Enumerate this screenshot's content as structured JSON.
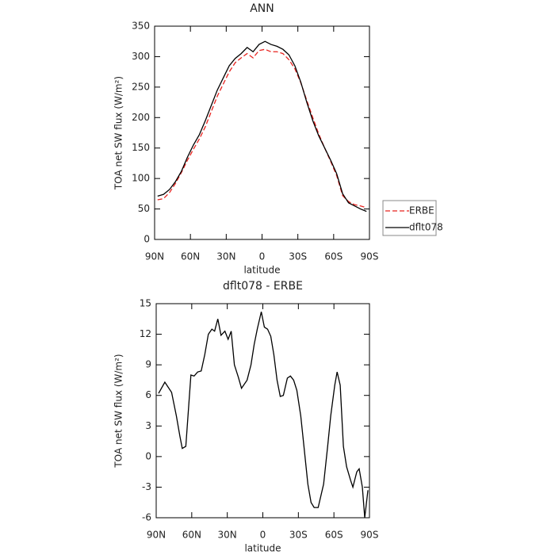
{
  "chart_data": [
    {
      "type": "line",
      "title": "ANN",
      "xlabel": "latitude",
      "ylabel": "TOA net SW flux (W/m²)",
      "x": [
        87.5,
        82.5,
        77.5,
        72.5,
        67.5,
        62.5,
        57.5,
        52.5,
        47.5,
        42.5,
        37.5,
        32.5,
        27.5,
        22.5,
        17.5,
        12.5,
        7.5,
        2.5,
        -2.5,
        -7.5,
        -12.5,
        -17.5,
        -22.5,
        -27.5,
        -32.5,
        -37.5,
        -42.5,
        -47.5,
        -52.5,
        -57.5,
        -62.5,
        -67.5,
        -72.5,
        -77.5,
        -82.5,
        -87.5
      ],
      "series": [
        {
          "name": "ERBE",
          "color": "#e8231f",
          "style": "dashed",
          "values": [
            65,
            67,
            77,
            92,
            110,
            130,
            148,
            165,
            185,
            210,
            235,
            255,
            275,
            290,
            298,
            305,
            298,
            310,
            312,
            308,
            308,
            305,
            295,
            280,
            257,
            228,
            200,
            173,
            150,
            128,
            105,
            72,
            62,
            57,
            55,
            52
          ]
        },
        {
          "name": "dflt078",
          "color": "#000000",
          "style": "solid",
          "values": [
            71,
            74,
            82,
            95,
            112,
            135,
            155,
            172,
            195,
            220,
            245,
            265,
            285,
            297,
            305,
            315,
            308,
            320,
            325,
            320,
            317,
            312,
            303,
            285,
            258,
            225,
            195,
            170,
            150,
            130,
            108,
            75,
            60,
            55,
            50,
            46
          ]
        }
      ],
      "xlim": [
        90,
        -90
      ],
      "xticks": [
        {
          "value": 90,
          "label": "90N"
        },
        {
          "value": 60,
          "label": "60N"
        },
        {
          "value": 30,
          "label": "30N"
        },
        0,
        {
          "value": -30,
          "label": "30S"
        },
        {
          "value": -60,
          "label": "60S"
        },
        {
          "value": -90,
          "label": "90S"
        }
      ],
      "ylim": [
        0,
        350
      ],
      "yticks": [
        0,
        50,
        100,
        150,
        200,
        250,
        300,
        350
      ],
      "legend": "outside-right"
    },
    {
      "type": "line",
      "title": "dflt078 - ERBE",
      "xlabel": "latitude",
      "ylabel": "TOA net SW flux (W/m²)",
      "x": [
        88,
        82.7,
        77,
        73,
        70,
        68,
        65,
        60.7,
        58,
        55,
        52,
        49,
        46,
        43,
        40.7,
        38,
        35.3,
        32,
        29.3,
        26.7,
        24,
        20.7,
        18,
        13.3,
        10,
        7.3,
        4.7,
        1.3,
        -1.3,
        -4,
        -6.7,
        -9.3,
        -12,
        -14.7,
        -17.3,
        -20.7,
        -23.3,
        -26,
        -28.7,
        -32,
        -34.7,
        -38,
        -40.7,
        -43.3,
        -46.7,
        -51.3,
        -54.7,
        -57.3,
        -60.7,
        -62.7,
        -65.3,
        -68,
        -70.7,
        -74,
        -76,
        -79.3,
        -81.3,
        -84,
        -86,
        -88.7
      ],
      "values": [
        6.2,
        7.3,
        6.3,
        4,
        2,
        0.8,
        1,
        8,
        7.9,
        8.3,
        8.4,
        10,
        12,
        12.5,
        12.3,
        13.5,
        11.9,
        12.3,
        11.5,
        12.3,
        9,
        7.8,
        6.7,
        7.5,
        9,
        11,
        12.5,
        14.2,
        12.7,
        12.5,
        11.8,
        10,
        7.5,
        5.9,
        6,
        7.7,
        7.9,
        7.5,
        6.5,
        4,
        1,
        -2.7,
        -4.5,
        -5,
        -5,
        -2.7,
        1,
        4,
        7,
        8.3,
        7,
        1,
        -1,
        -2.3,
        -3,
        -1.5,
        -1.2,
        -3,
        -6,
        -3.3
      ],
      "color": "#000000",
      "xlim": [
        90,
        -90
      ],
      "xticks": [
        {
          "value": 90,
          "label": "90N"
        },
        {
          "value": 60,
          "label": "60N"
        },
        {
          "value": 30,
          "label": "30N"
        },
        0,
        {
          "value": -30,
          "label": "30S"
        },
        {
          "value": -60,
          "label": "60S"
        },
        {
          "value": -90,
          "label": "90S"
        }
      ],
      "ylim": [
        -6,
        15
      ],
      "yticks": [
        -6,
        -3,
        0,
        3,
        6,
        9,
        12,
        15
      ]
    }
  ]
}
